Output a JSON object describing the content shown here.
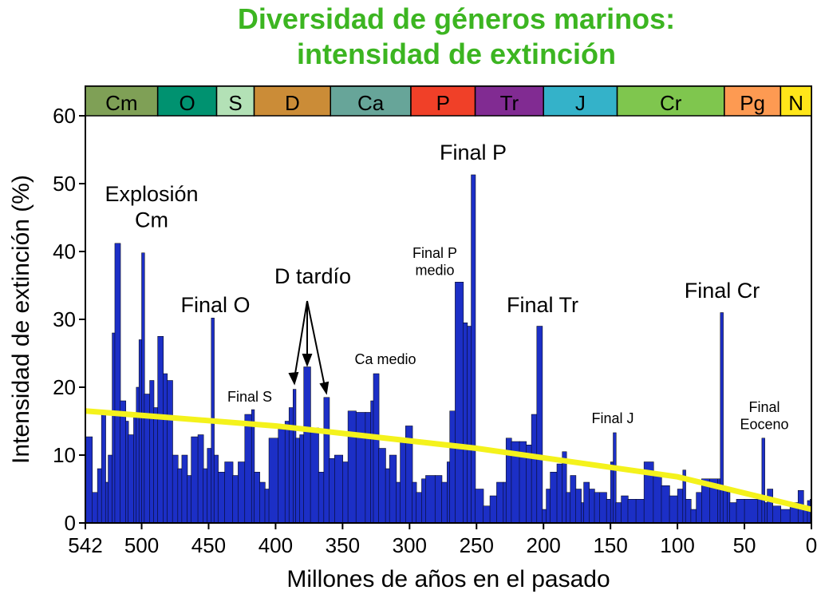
{
  "chart_data": {
    "type": "step",
    "title": [
      "Diversidad de géneros marinos:",
      "intensidad de extinción"
    ],
    "xlabel": "Millones de años en el pasado",
    "ylabel": "Intensidad de extinción (%)",
    "xlim": [
      542,
      0
    ],
    "ylim": [
      0,
      62
    ],
    "xticks": [
      542,
      500,
      450,
      400,
      350,
      300,
      250,
      200,
      150,
      100,
      50,
      0
    ],
    "yticks": [
      0,
      10,
      20,
      30,
      40,
      50,
      60
    ],
    "color": "#1c2fc6",
    "x": [
      542,
      537,
      533,
      530,
      527,
      525,
      522,
      520,
      516,
      512,
      510,
      506,
      504,
      502,
      500,
      498,
      494,
      491,
      488,
      484,
      481,
      477,
      473,
      470,
      466,
      463,
      458,
      454,
      451,
      448,
      446,
      443,
      438,
      432,
      428,
      423,
      418,
      416,
      412,
      408,
      405,
      398,
      393,
      390,
      387,
      385,
      382,
      379,
      374,
      368,
      364,
      360,
      356,
      350,
      346,
      340,
      333,
      329,
      327,
      323,
      318,
      315,
      310,
      307,
      303,
      298,
      295,
      291,
      288,
      281,
      276,
      272,
      270,
      266,
      260,
      257,
      254,
      251,
      245,
      240,
      235,
      230,
      228,
      224,
      218,
      213,
      209,
      205,
      201,
      198,
      195,
      190,
      186,
      183,
      180,
      176,
      172,
      170,
      166,
      162,
      158,
      153,
      150,
      148,
      146,
      142,
      137,
      131,
      125,
      118,
      112,
      106,
      100,
      96,
      94,
      90,
      86,
      82,
      76,
      70,
      68,
      66,
      63,
      61,
      56,
      50,
      40,
      37,
      35,
      33,
      29,
      23,
      16,
      10,
      6,
      3,
      1
    ],
    "values": [
      12.7,
      4.5,
      8,
      16.5,
      6,
      10,
      28,
      41.2,
      18,
      15,
      13,
      16,
      20,
      27,
      39.8,
      19,
      21,
      17,
      27.5,
      22,
      21,
      10,
      8,
      10,
      7,
      12.7,
      13,
      8,
      11,
      30.2,
      10,
      7.5,
      9,
      7,
      9,
      16,
      16.7,
      7.5,
      6,
      5,
      12.5,
      14,
      15,
      17,
      19.7,
      12.5,
      13,
      23,
      14,
      7.5,
      18.5,
      9.5,
      10,
      9,
      16.5,
      16.3,
      16.3,
      18,
      22,
      11,
      8,
      10,
      6,
      12,
      14.3,
      6,
      4.5,
      6.5,
      7,
      7,
      6,
      9,
      16.5,
      35.5,
      29.5,
      29,
      51.3,
      5,
      2.5,
      4,
      6,
      6,
      12.5,
      12,
      12,
      11.5,
      16,
      29,
      2,
      5,
      7.5,
      8.7,
      10.5,
      4.5,
      7,
      5,
      3,
      6,
      5,
      4.5,
      4.5,
      3.5,
      9,
      13.3,
      3,
      4,
      3.5,
      3.5,
      9,
      7,
      5.5,
      4,
      5,
      7.8,
      3.5,
      2,
      4.5,
      6.5,
      6.5,
      6.5,
      31,
      5,
      4.5,
      3,
      3.5,
      3.5,
      3.5,
      12.5,
      3,
      5,
      2.5,
      2,
      3,
      4.8,
      2.2,
      3.3,
      3.5
    ],
    "trend": {
      "color": "#f4f21c",
      "x": [
        542,
        400,
        250,
        100,
        0
      ],
      "values": [
        16.5,
        14.3,
        11,
        6.8,
        2
      ]
    },
    "periods": [
      {
        "label": "Cm",
        "start": 542,
        "end": 488,
        "color": "#7fa056"
      },
      {
        "label": "O",
        "start": 488,
        "end": 444,
        "color": "#009270"
      },
      {
        "label": "S",
        "start": 444,
        "end": 416,
        "color": "#b3e1b6"
      },
      {
        "label": "D",
        "start": 416,
        "end": 359,
        "color": "#cb8c37"
      },
      {
        "label": "Ca",
        "start": 359,
        "end": 299,
        "color": "#67a599"
      },
      {
        "label": "P",
        "start": 299,
        "end": 251,
        "color": "#f04028"
      },
      {
        "label": "Tr",
        "start": 251,
        "end": 200,
        "color": "#812b92"
      },
      {
        "label": "J",
        "start": 200,
        "end": 145,
        "color": "#34b2c9"
      },
      {
        "label": "Cr",
        "start": 145,
        "end": 65,
        "color": "#7fc64e"
      },
      {
        "label": "Pg",
        "start": 65,
        "end": 23,
        "color": "#fd9a52"
      },
      {
        "label": "N",
        "start": 23,
        "end": 0,
        "color": "#ffe619"
      }
    ],
    "annotations": [
      [
        "Explosión",
        "Cm"
      ],
      [
        "Final O"
      ],
      [
        "Final S"
      ],
      [
        "D tardío"
      ],
      [
        "Ca medio"
      ],
      [
        "Final P"
      ],
      [
        "Final P",
        "medio"
      ],
      [
        "Final Tr"
      ],
      [
        "Final J"
      ],
      [
        "Final Cr"
      ],
      [
        "Final",
        "Eoceno"
      ]
    ]
  }
}
